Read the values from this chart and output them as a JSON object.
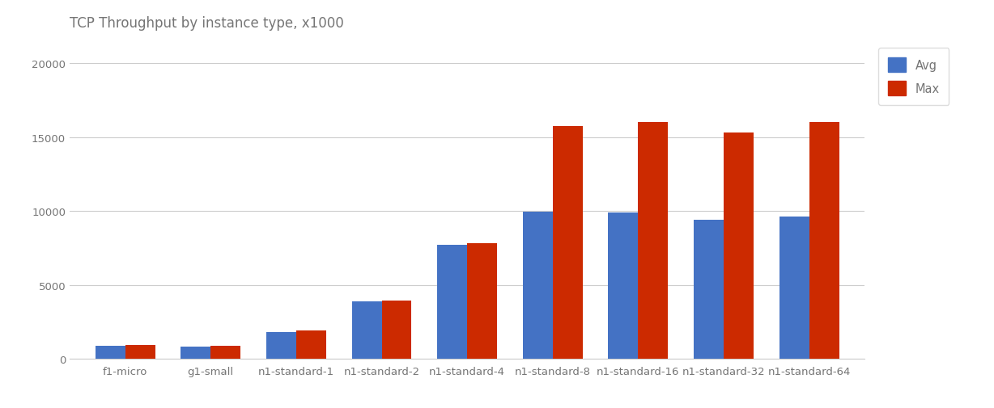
{
  "title": "TCP Throughput by instance type, x1000",
  "categories": [
    "f1-micro",
    "g1-small",
    "n1-standard-1",
    "n1-standard-2",
    "n1-standard-4",
    "n1-standard-8",
    "n1-standard-16",
    "n1-standard-32",
    "n1-standard-64"
  ],
  "avg_values": [
    900,
    850,
    1800,
    3900,
    7700,
    9950,
    9900,
    9400,
    9650
  ],
  "max_values": [
    950,
    900,
    1900,
    3950,
    7800,
    15750,
    16000,
    15300,
    16000
  ],
  "avg_color": "#4472c4",
  "max_color": "#cc2a00",
  "background_color": "#ffffff",
  "grid_color": "#cccccc",
  "ylim": [
    0,
    21000
  ],
  "yticks": [
    0,
    5000,
    10000,
    15000,
    20000
  ],
  "title_fontsize": 12,
  "title_color": "#757575",
  "tick_color": "#757575",
  "legend_labels": [
    "Avg",
    "Max"
  ],
  "bar_width": 0.35,
  "figsize": [
    12.28,
    5.06
  ],
  "dpi": 100
}
